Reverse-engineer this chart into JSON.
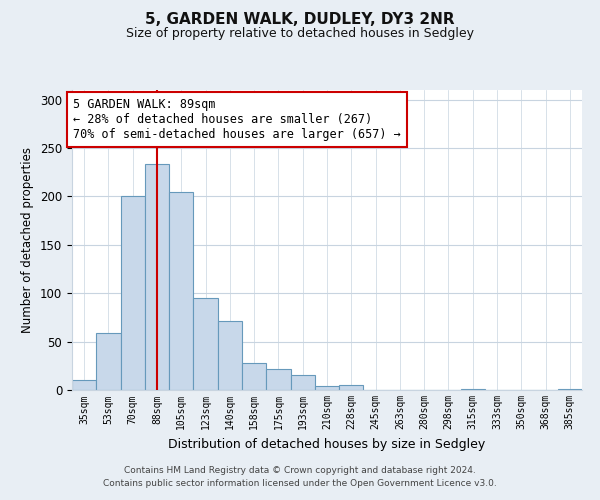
{
  "title": "5, GARDEN WALK, DUDLEY, DY3 2NR",
  "subtitle": "Size of property relative to detached houses in Sedgley",
  "xlabel": "Distribution of detached houses by size in Sedgley",
  "ylabel": "Number of detached properties",
  "bar_labels": [
    "35sqm",
    "53sqm",
    "70sqm",
    "88sqm",
    "105sqm",
    "123sqm",
    "140sqm",
    "158sqm",
    "175sqm",
    "193sqm",
    "210sqm",
    "228sqm",
    "245sqm",
    "263sqm",
    "280sqm",
    "298sqm",
    "315sqm",
    "333sqm",
    "350sqm",
    "368sqm",
    "385sqm"
  ],
  "bar_values": [
    10,
    59,
    200,
    234,
    205,
    95,
    71,
    28,
    22,
    15,
    4,
    5,
    0,
    0,
    0,
    0,
    1,
    0,
    0,
    0,
    1
  ],
  "bar_color": "#c8d8ea",
  "bar_edge_color": "#6699bb",
  "marker_index": 3,
  "marker_line_color": "#cc0000",
  "annotation_line1": "5 GARDEN WALK: 89sqm",
  "annotation_line2": "← 28% of detached houses are smaller (267)",
  "annotation_line3": "70% of semi-detached houses are larger (657) →",
  "annotation_box_color": "#ffffff",
  "annotation_box_edge_color": "#cc0000",
  "ylim": [
    0,
    310
  ],
  "yticks": [
    0,
    50,
    100,
    150,
    200,
    250,
    300
  ],
  "footer_line1": "Contains HM Land Registry data © Crown copyright and database right 2024.",
  "footer_line2": "Contains public sector information licensed under the Open Government Licence v3.0.",
  "bg_color": "#e8eef4",
  "plot_bg_color": "#ffffff",
  "grid_color": "#c8d4e0"
}
